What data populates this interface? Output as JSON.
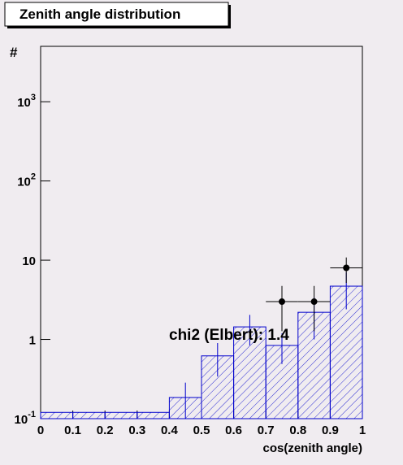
{
  "chart_data": {
    "type": "histogram",
    "title": "Zenith angle distribution",
    "xlabel": "cos(zenith angle)",
    "ylabel": "#",
    "annotation": "chi2 (Elbert): 1.4",
    "log_y": true,
    "xlim": [
      0,
      1
    ],
    "ylim": [
      0.1,
      5000
    ],
    "xticks": [
      0,
      0.1,
      0.2,
      0.3,
      0.4,
      0.5,
      0.6,
      0.7,
      0.8,
      0.9,
      1
    ],
    "yticks": [
      {
        "value": 0.1,
        "label": "10",
        "sup": "-1"
      },
      1,
      10,
      {
        "value": 100,
        "label": "10",
        "sup": "2"
      },
      {
        "value": 1000,
        "label": "10",
        "sup": "3"
      }
    ],
    "bins": [
      0,
      0.1,
      0.2,
      0.3,
      0.4,
      0.5,
      0.6,
      0.7,
      0.8,
      0.9,
      1
    ],
    "histogram": {
      "color": "#0000cc",
      "values": [
        0.12,
        0.12,
        0.12,
        0.12,
        0.185,
        0.62,
        1.44,
        0.84,
        2.2,
        4.7
      ],
      "errors": [
        null,
        null,
        null,
        null,
        0.1,
        0.28,
        0.6,
        0.35,
        1.2,
        2.3
      ]
    },
    "points": {
      "color": "#000000",
      "x": [
        0.75,
        0.85,
        0.95
      ],
      "values": [
        3,
        3,
        8
      ],
      "errors": [
        1.73,
        1.73,
        2.83
      ],
      "xerrors": [
        0.05,
        0.05,
        0.05
      ]
    }
  }
}
